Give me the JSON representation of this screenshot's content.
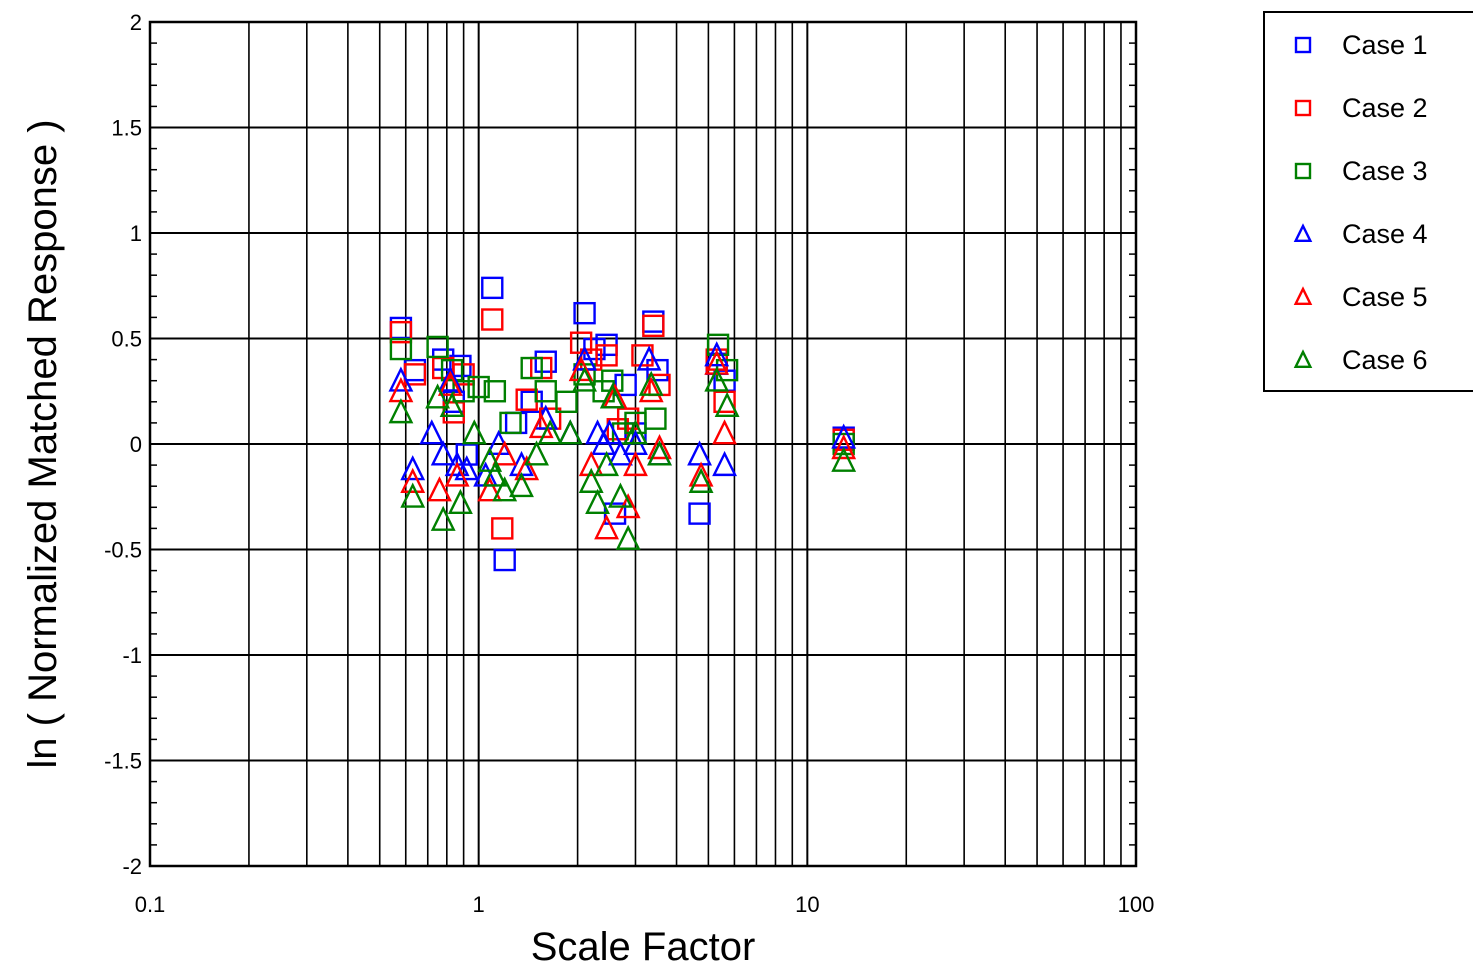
{
  "chart_data": {
    "type": "scatter",
    "xlabel": "Scale Factor",
    "ylabel": "ln ( Normalized Matched Response )",
    "xscale": "log",
    "xlim": [
      0.1,
      100
    ],
    "ylim": [
      -2,
      2
    ],
    "x_tick_labels": [
      "0.1",
      "1",
      "10",
      "100"
    ],
    "y_tick_labels": [
      "2",
      "1.5",
      "1",
      "0.5",
      "0",
      "-0.5",
      "-1",
      "-1.5",
      "-2"
    ],
    "grid": true,
    "legend_position": "right",
    "series": [
      {
        "name": "Case 1",
        "marker": "square",
        "color": "#0000ff",
        "x": [
          0.58,
          0.64,
          0.78,
          0.84,
          0.88,
          0.92,
          1.1,
          1.2,
          1.3,
          1.45,
          1.6,
          2.1,
          2.25,
          2.45,
          2.6,
          2.8,
          3.0,
          3.4,
          3.5,
          4.7,
          5.3,
          5.6,
          12.9
        ],
        "y": [
          0.55,
          0.35,
          0.4,
          0.2,
          0.37,
          -0.05,
          0.74,
          -0.55,
          0.1,
          0.2,
          0.39,
          0.62,
          0.45,
          0.47,
          -0.33,
          0.28,
          0.05,
          0.58,
          0.35,
          -0.33,
          0.38,
          0.3,
          0.03
        ]
      },
      {
        "name": "Case 2",
        "marker": "square",
        "color": "#ff0000",
        "x": [
          0.58,
          0.64,
          0.78,
          0.84,
          0.9,
          1.1,
          1.18,
          1.4,
          1.55,
          1.65,
          2.05,
          2.2,
          2.45,
          2.65,
          2.85,
          3.15,
          3.4,
          3.55,
          5.3,
          5.6,
          12.9
        ],
        "y": [
          0.53,
          0.33,
          0.36,
          0.15,
          0.33,
          0.59,
          -0.4,
          0.21,
          0.36,
          0.12,
          0.48,
          0.4,
          0.42,
          0.07,
          0.12,
          0.42,
          0.56,
          0.28,
          0.4,
          0.2,
          0.02
        ]
      },
      {
        "name": "Case 3",
        "marker": "square",
        "color": "#008000",
        "x": [
          0.58,
          0.75,
          0.83,
          0.9,
          1.0,
          1.12,
          1.25,
          1.45,
          1.6,
          1.85,
          2.1,
          2.4,
          2.55,
          2.75,
          3.0,
          3.45,
          5.35,
          5.7,
          12.9
        ],
        "y": [
          0.45,
          0.46,
          0.35,
          0.25,
          0.27,
          0.25,
          0.1,
          0.36,
          0.25,
          0.2,
          0.33,
          0.25,
          0.3,
          0.05,
          0.1,
          0.12,
          0.47,
          0.35,
          0.0
        ]
      },
      {
        "name": "Case 4",
        "marker": "triangle",
        "color": "#0000ff",
        "x": [
          0.58,
          0.63,
          0.72,
          0.78,
          0.82,
          0.86,
          0.92,
          1.05,
          1.15,
          1.35,
          1.6,
          1.9,
          2.1,
          2.3,
          2.4,
          2.5,
          2.7,
          3.0,
          3.3,
          3.55,
          4.7,
          5.3,
          5.6,
          12.9
        ],
        "y": [
          0.3,
          -0.12,
          0.05,
          -0.05,
          0.3,
          -0.1,
          -0.12,
          -0.15,
          0.0,
          -0.1,
          0.12,
          0.05,
          0.4,
          0.05,
          0.0,
          0.05,
          -0.05,
          0.0,
          0.4,
          -0.05,
          -0.05,
          0.42,
          -0.1,
          0.03
        ]
      },
      {
        "name": "Case 5",
        "marker": "triangle",
        "color": "#ff0000",
        "x": [
          0.58,
          0.63,
          0.76,
          0.82,
          0.86,
          1.08,
          1.2,
          1.4,
          1.55,
          2.05,
          2.2,
          2.45,
          2.6,
          2.85,
          3.0,
          3.35,
          3.55,
          4.75,
          5.3,
          5.6,
          12.9
        ],
        "y": [
          0.25,
          -0.18,
          -0.22,
          0.28,
          -0.15,
          -0.22,
          -0.05,
          -0.12,
          0.08,
          0.35,
          -0.1,
          -0.4,
          0.22,
          -0.3,
          -0.1,
          0.25,
          -0.02,
          -0.15,
          0.38,
          0.05,
          -0.02
        ]
      },
      {
        "name": "Case 6",
        "marker": "triangle",
        "color": "#008000",
        "x": [
          0.58,
          0.63,
          0.75,
          0.78,
          0.83,
          0.88,
          0.97,
          1.08,
          1.12,
          1.2,
          1.35,
          1.5,
          1.65,
          1.9,
          2.1,
          2.2,
          2.3,
          2.45,
          2.55,
          2.7,
          2.85,
          3.0,
          3.35,
          3.55,
          4.75,
          5.3,
          5.7,
          12.9
        ],
        "y": [
          0.15,
          -0.25,
          0.22,
          -0.36,
          0.18,
          -0.28,
          0.05,
          -0.08,
          -0.15,
          -0.22,
          -0.2,
          -0.05,
          0.05,
          0.05,
          0.3,
          -0.18,
          -0.28,
          -0.1,
          0.22,
          -0.25,
          -0.45,
          0.05,
          0.28,
          -0.05,
          -0.18,
          0.3,
          0.18,
          -0.08
        ]
      }
    ]
  }
}
